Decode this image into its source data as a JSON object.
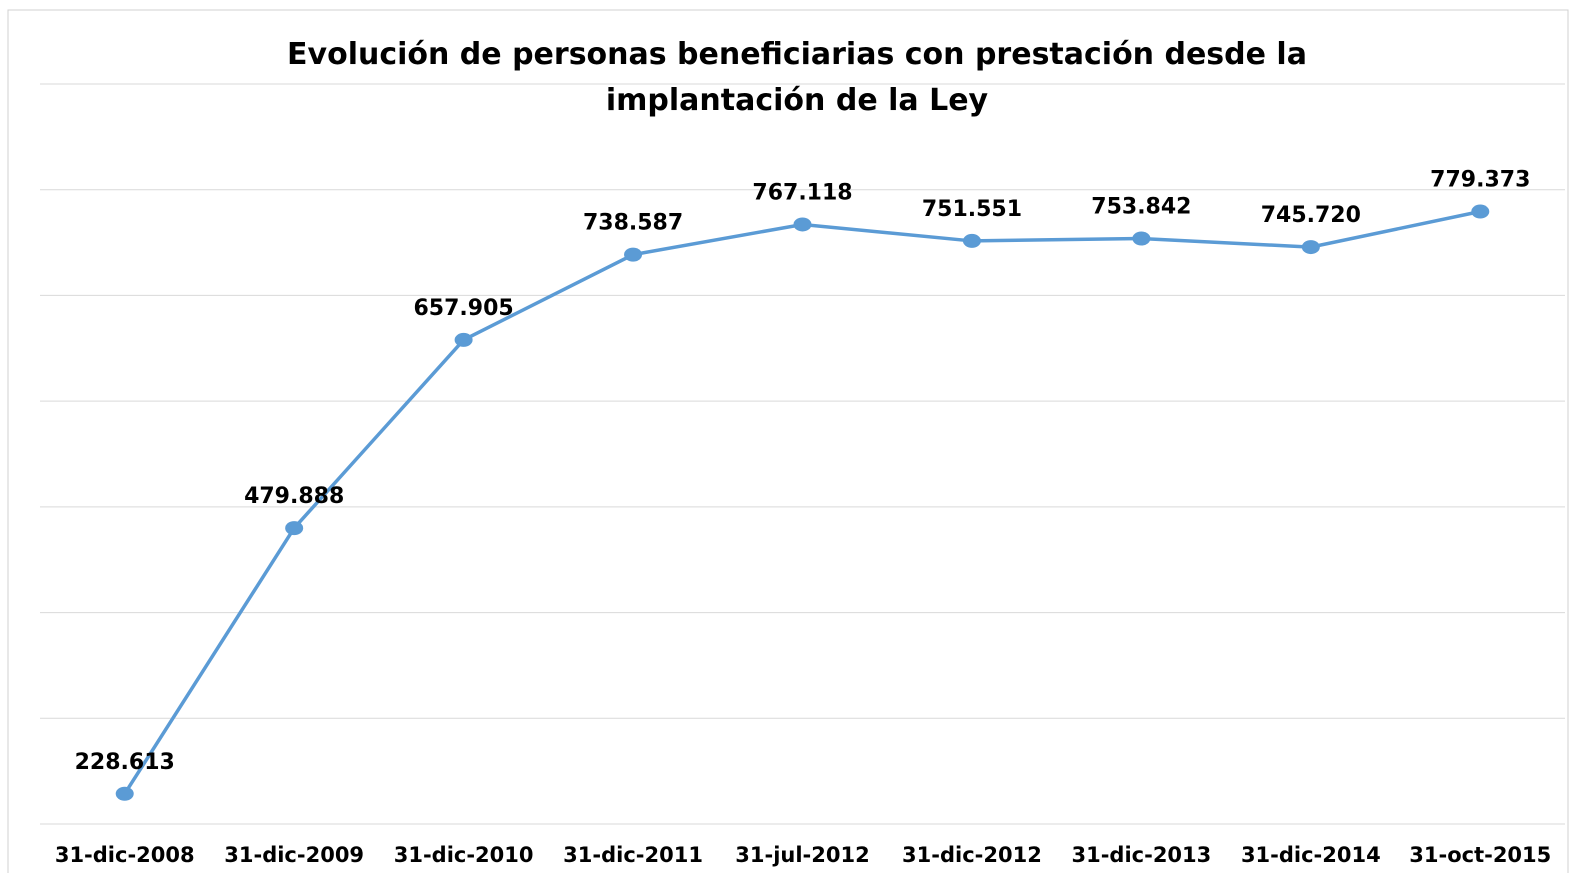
{
  "chart_data": {
    "type": "line",
    "title": "Evolución de personas beneficiarias con prestación desde la implantación de la Ley",
    "categories": [
      "31-dic-2008",
      "31-dic-2009",
      "31-dic-2010",
      "31-dic-2011",
      "31-jul-2012",
      "31-dic-2012",
      "31-dic-2013",
      "31-dic-2014",
      "31-oct-2015"
    ],
    "series": [
      {
        "color": "#5b9bd5",
        "values": [
          228613,
          479888,
          657905,
          738587,
          767118,
          751551,
          753842,
          745720,
          779373
        ],
        "value_labels": [
          "228.613",
          "479.888",
          "657.905",
          "738.587",
          "767.118",
          "751.551",
          "753.842",
          "745.720",
          "779.373"
        ]
      }
    ],
    "ylim": [
      200000,
      900000
    ],
    "yticks": [
      200000,
      300000,
      400000,
      500000,
      600000,
      700000,
      800000,
      900000
    ],
    "grid": true
  }
}
